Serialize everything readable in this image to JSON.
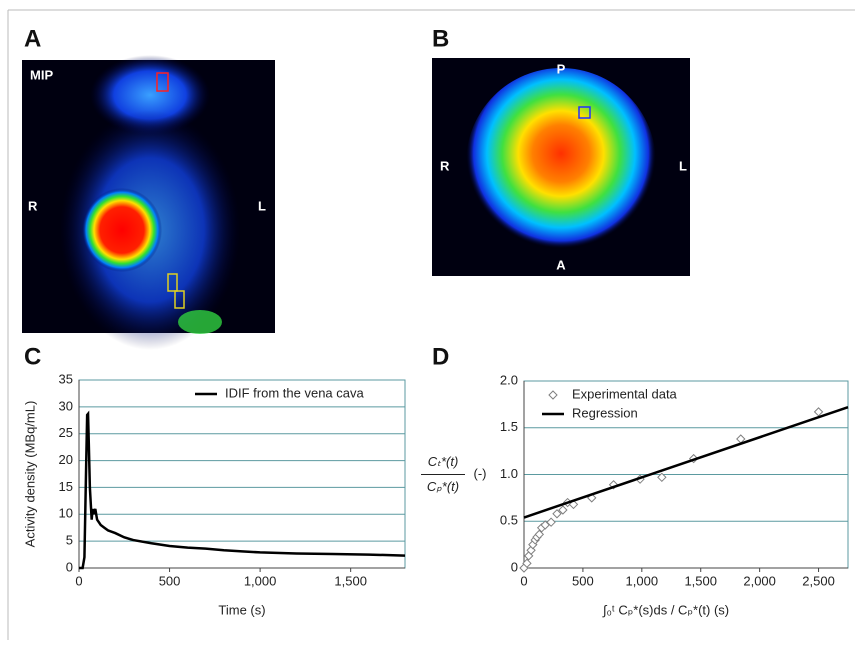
{
  "panel_labels": [
    "A",
    "B",
    "C",
    "D"
  ],
  "image_a": {
    "mip": "MIP",
    "left": "R",
    "right": "L"
  },
  "image_b": {
    "top": "P",
    "bottom": "A",
    "left": "R",
    "right": "L"
  },
  "chart_data": [
    {
      "type": "line",
      "ylabel": "Activity density (MBq/mL)",
      "xlabel": "Time (s)",
      "xlim": [
        0,
        1800
      ],
      "ylim": [
        0,
        35
      ],
      "xticks": [
        0,
        500,
        {
          "value": 1000,
          "label": "1,000"
        },
        {
          "value": 1500,
          "label": "1,500"
        }
      ],
      "yticks": [
        0,
        5,
        10,
        15,
        20,
        25,
        30,
        35
      ],
      "grid": true,
      "grid_color": "#5b9aa0",
      "legend": "top-right",
      "series": [
        {
          "name": "IDIF from the vena cava",
          "type": "line",
          "color": "#000000",
          "x": [
            0,
            20,
            30,
            40,
            45,
            50,
            55,
            60,
            65,
            70,
            75,
            80,
            90,
            100,
            110,
            120,
            140,
            160,
            200,
            250,
            300,
            400,
            500,
            600,
            700,
            800,
            900,
            1000,
            1200,
            1400,
            1600,
            1800
          ],
          "values": [
            0,
            0,
            2,
            20,
            28.5,
            28.7,
            22,
            15,
            12,
            9,
            11,
            10,
            11,
            9,
            8.5,
            8,
            7.5,
            7,
            6.5,
            5.7,
            5.2,
            4.6,
            4.1,
            3.8,
            3.6,
            3.3,
            3.1,
            2.9,
            2.7,
            2.6,
            2.5,
            2.3
          ]
        }
      ]
    },
    {
      "type": "scatter",
      "ylabel_numerator": "Cₜ*(t)",
      "ylabel_denominator": "Cₚ*(t)",
      "ylabel_unit": "(-)",
      "xlabel": "∫₀ᵗ Cₚ*(s)ds / Cₚ*(t)   (s)",
      "xlim": [
        0,
        2750
      ],
      "ylim": [
        0,
        2
      ],
      "xticks": [
        0,
        500,
        {
          "value": 1000,
          "label": "1,000"
        },
        {
          "value": 1500,
          "label": "1,500"
        },
        {
          "value": 2000,
          "label": "2,000"
        },
        {
          "value": 2500,
          "label": "2,500"
        }
      ],
      "yticks": [
        0,
        0.5,
        {
          "value": 1,
          "label": "1.0"
        },
        1.5,
        {
          "value": 2,
          "label": "2.0"
        }
      ],
      "grid": true,
      "grid_color": "#5b9aa0",
      "legend": "top-left",
      "series": [
        {
          "name": "Experimental data",
          "type": "scatter",
          "color": "#7f7f7f",
          "x": [
            0,
            25,
            40,
            60,
            75,
            95,
            110,
            130,
            150,
            180,
            230,
            280,
            330,
            370,
            420,
            575,
            760,
            985,
            1170,
            1440,
            1840,
            2500
          ],
          "values": [
            0,
            0.05,
            0.13,
            0.19,
            0.25,
            0.3,
            0.33,
            0.36,
            0.43,
            0.46,
            0.49,
            0.58,
            0.62,
            0.7,
            0.68,
            0.75,
            0.89,
            0.95,
            0.97,
            1.17,
            1.38,
            1.67
          ]
        },
        {
          "name": "Regression",
          "type": "line",
          "color": "#000000",
          "x": [
            0,
            2750
          ],
          "values": [
            0.54,
            1.72
          ]
        }
      ]
    }
  ]
}
